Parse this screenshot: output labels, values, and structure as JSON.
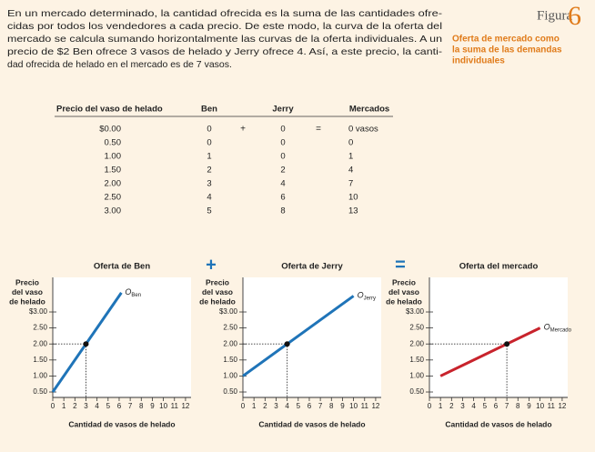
{
  "paragraph": [
    "En un mercado determinado, la cantidad ofrecida es la suma de las cantidades ofre-",
    "cidas por todos los vendedores a cada precio. De este modo, la curva de la oferta del",
    "mercado se calcula sumando horizontalmente las curvas de la oferta individuales. A un",
    "precio de $2 Ben ofrece 3 vasos de helado y Jerry ofrece 4. Así, a este precio, la canti-",
    "dad ofrecida de helado en el mercado es de 7 vasos."
  ],
  "figure": {
    "label": "Figura",
    "number": "6",
    "subtitle": [
      "Oferta de mercado como",
      "la suma de las demandas",
      "individuales"
    ]
  },
  "table": {
    "columns": [
      "Precio del vaso de helado",
      "Ben",
      "Jerry",
      "Mercados"
    ],
    "operators": [
      "+",
      "="
    ],
    "rows": [
      [
        "$0.00",
        "0",
        "0",
        "0 vasos"
      ],
      [
        "0.50",
        "0",
        "0",
        "0"
      ],
      [
        "1.00",
        "1",
        "0",
        "1"
      ],
      [
        "1.50",
        "2",
        "2",
        "4"
      ],
      [
        "2.00",
        "3",
        "4",
        "7"
      ],
      [
        "2.50",
        "4",
        "6",
        "10"
      ],
      [
        "3.00",
        "5",
        "8",
        "13"
      ]
    ]
  },
  "operators": [
    "+",
    "="
  ],
  "chart_data": [
    {
      "type": "line",
      "title": "Oferta de Ben",
      "ylabel": [
        "Precio",
        "del vaso",
        "de helado"
      ],
      "xlabel": "Cantidad de vasos de helado",
      "xlim": [
        0,
        12.5
      ],
      "ylim": [
        0.33,
        4.08
      ],
      "xticks": [
        0,
        1,
        2,
        3,
        4,
        5,
        6,
        7,
        8,
        9,
        10,
        11,
        12
      ],
      "yticks": [
        {
          "value": 0.5,
          "label": "0.50"
        },
        {
          "value": 1,
          "label": "1.00"
        },
        {
          "value": 1.5,
          "label": "1.50"
        },
        {
          "value": 2,
          "label": "2.00"
        },
        {
          "value": 2.5,
          "label": "2.50"
        },
        {
          "value": 3,
          "label": "$3.00"
        }
      ],
      "series": [
        {
          "name": "O",
          "subscript": "Ben",
          "color": "#1f74b8",
          "x": [
            0,
            6.2
          ],
          "values": [
            0.5,
            3.6
          ]
        }
      ],
      "point": {
        "x": 3,
        "y": 2
      }
    },
    {
      "type": "line",
      "title": "Oferta de Jerry",
      "ylabel": [
        "Precio",
        "del vaso",
        "de helado"
      ],
      "xlabel": "Cantidad de vasos de helado",
      "xlim": [
        0,
        12.5
      ],
      "ylim": [
        0.33,
        4.08
      ],
      "xticks": [
        0,
        1,
        2,
        3,
        4,
        5,
        6,
        7,
        8,
        9,
        10,
        11,
        12
      ],
      "yticks": [
        {
          "value": 0.5,
          "label": "0.50"
        },
        {
          "value": 1,
          "label": "1.00"
        },
        {
          "value": 1.5,
          "label": "1.50"
        },
        {
          "value": 2,
          "label": "2.00"
        },
        {
          "value": 2.5,
          "label": "2.50"
        },
        {
          "value": 3,
          "label": "$3.00"
        }
      ],
      "series": [
        {
          "name": "O",
          "subscript": "Jerry",
          "color": "#1f74b8",
          "x": [
            0,
            10
          ],
          "values": [
            1,
            3.5
          ]
        }
      ],
      "point": {
        "x": 4,
        "y": 2
      }
    },
    {
      "type": "line",
      "title": "Oferta del mercado",
      "ylabel": [
        "Precio",
        "del vaso",
        "de helado"
      ],
      "xlabel": "Cantidad de vasos de helado",
      "xlim": [
        0,
        12.5
      ],
      "ylim": [
        0.33,
        4.08
      ],
      "xticks": [
        0,
        1,
        2,
        3,
        4,
        5,
        6,
        7,
        8,
        9,
        10,
        11,
        12
      ],
      "yticks": [
        {
          "value": 0.5,
          "label": "0.50"
        },
        {
          "value": 1,
          "label": "1.00"
        },
        {
          "value": 1.5,
          "label": "1.50"
        },
        {
          "value": 2,
          "label": "2.00"
        },
        {
          "value": 2.5,
          "label": "2.50"
        },
        {
          "value": 3,
          "label": "$3.00"
        }
      ],
      "series": [
        {
          "name": "O",
          "subscript": "Mercado",
          "color": "#c8232c",
          "x": [
            1,
            10
          ],
          "values": [
            1,
            2.5
          ]
        }
      ],
      "point": {
        "x": 7,
        "y": 2
      }
    }
  ]
}
